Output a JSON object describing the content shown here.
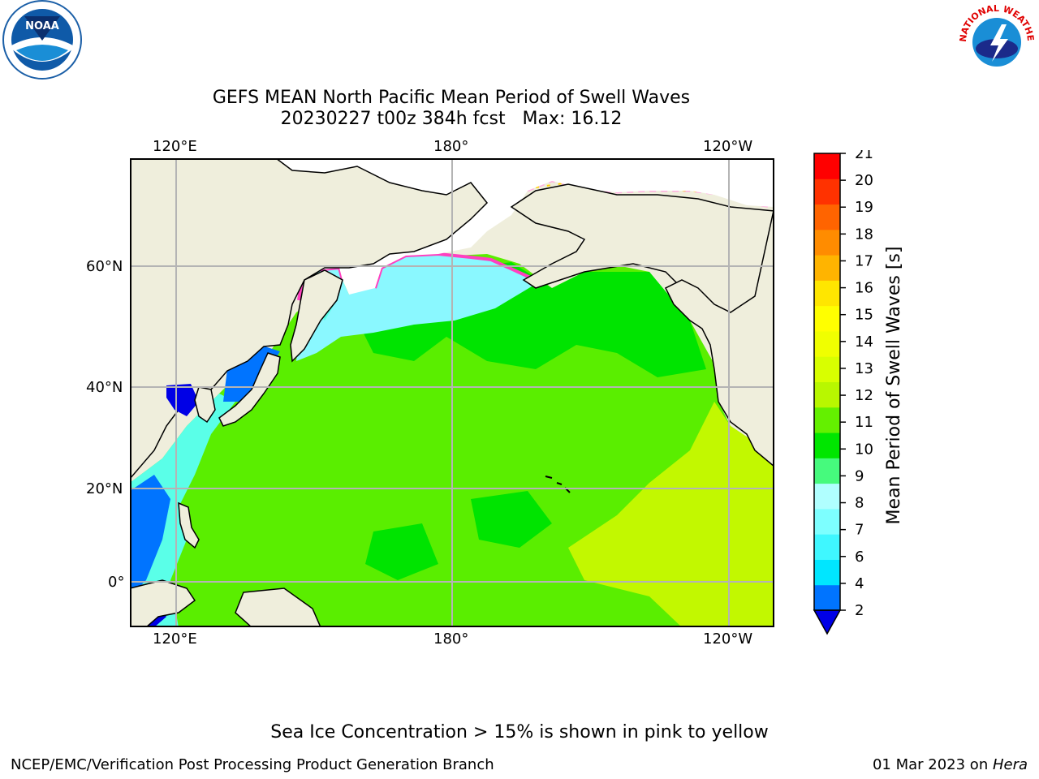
{
  "title_line1": "GEFS MEAN North Pacific Mean Period of Swell Waves",
  "title_line2": "20230227 t00z 384h fcst   Max: 16.12",
  "lon_ticks": [
    "120°E",
    "180°",
    "120°W"
  ],
  "lat_ticks": [
    "60°N",
    "40°N",
    "20°N",
    "0°"
  ],
  "colorbar": {
    "label": "Mean Period of Swell Waves [s]",
    "ticks": [
      "2",
      "4",
      "6",
      "7",
      "8",
      "9",
      "10",
      "11",
      "12",
      "13",
      "14",
      "15",
      "16",
      "17",
      "18",
      "19",
      "20",
      "21"
    ],
    "colors": [
      "#0074ff",
      "#00e6ff",
      "#3ff7ff",
      "#7dffff",
      "#b0ffff",
      "#46fa7d",
      "#00e600",
      "#64f000",
      "#b8f700",
      "#d8ff00",
      "#f0ff00",
      "#ffff00",
      "#ffe600",
      "#ffb400",
      "#ff8c00",
      "#ff6400",
      "#ff3200",
      "#ff0000"
    ],
    "under_color": "#0000e6"
  },
  "ice_note": "Sea Ice Concentration > 15% is shown in pink to yellow",
  "footer_left": "NCEP/EMC/Verification Post Processing Product Generation Branch",
  "footer_date": "01 Mar 2023 on ",
  "footer_host": "Hera",
  "logos": {
    "noaa": "NOAA",
    "nws_ring": "NATIONAL WEATHER SERVICE"
  },
  "colors": {
    "land": "#efeedc",
    "ocean_main": "#5aee00",
    "ocean_green": "#00e400",
    "ocean_yellow": "#c2f800",
    "grid": "#b4b4b4"
  }
}
